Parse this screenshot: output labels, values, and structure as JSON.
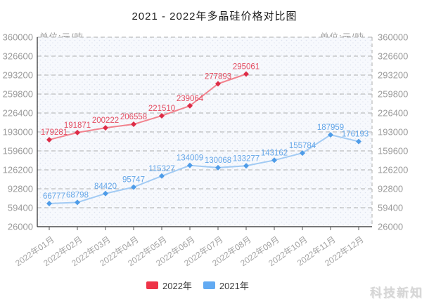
{
  "title": "2021 - 2022年多晶硅价格对比图",
  "unit_left": "单位:元/吨",
  "unit_right": "单位:元/吨",
  "watermark": "科技新知",
  "legend": [
    {
      "label": "2022年",
      "color": "#ee3448"
    },
    {
      "label": "2021年",
      "color": "#62aaf2"
    }
  ],
  "chart_data": {
    "type": "line",
    "title": "2021 - 2022年多晶硅价格对比图",
    "unit": "元/吨",
    "categories": [
      "2022年01月",
      "2022年02月",
      "2022年03月",
      "2022年04月",
      "2022年05月",
      "2022年06月",
      "2022年07月",
      "2022年08月",
      "2022年09月",
      "2022年10月",
      "2022年11月",
      "2022年12月"
    ],
    "series": [
      {
        "name": "2022年",
        "line_color": "#f2838e",
        "marker_color": "#dd2c47",
        "label_color": "#e44d62",
        "values": [
          179281,
          191871,
          200222,
          206558,
          221510,
          239064,
          277893,
          295061
        ]
      },
      {
        "name": "2021年",
        "line_color": "#a2cbf4",
        "marker_color": "#4e9ce8",
        "label_color": "#64a6e8",
        "values": [
          66777,
          68798,
          84420,
          95747,
          115327,
          134009,
          130068,
          133277,
          143162,
          155784,
          187959,
          176193
        ]
      }
    ],
    "ylim": [
      26000,
      360000
    ],
    "y_ticks": [
      26000,
      59400,
      92800,
      126200,
      159600,
      193000,
      226400,
      259800,
      293200,
      326600,
      360000
    ],
    "grid": true,
    "grid_style": "dashed",
    "legend_position": "bottom",
    "x_label_rotation": -35
  }
}
